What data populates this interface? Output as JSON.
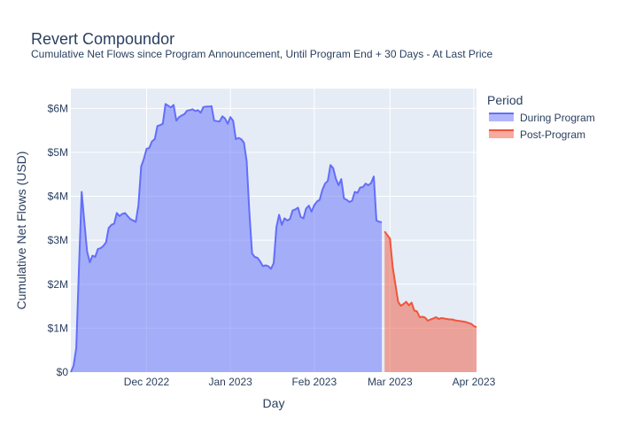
{
  "chart_data": {
    "type": "area",
    "title": "Revert Compoundor",
    "subtitle": "Cumulative Net Flows since Program Announcement, Until Program End + 30 Days - At Last Price",
    "xlabel": "Day",
    "ylabel": "Cumulative Net Flows (USD)",
    "xlim": [
      "2022-11-03",
      "2023-04-02"
    ],
    "ylim": [
      0,
      6450000
    ],
    "grid": true,
    "legend": {
      "title": "Period",
      "placement": "right"
    },
    "x_ticks": [
      {
        "date": "2022-12-01",
        "label": "Dec 2022"
      },
      {
        "date": "2023-01-01",
        "label": "Jan 2023"
      },
      {
        "date": "2023-02-01",
        "label": "Feb 2023"
      },
      {
        "date": "2023-03-01",
        "label": "Mar 2023"
      },
      {
        "date": "2023-04-01",
        "label": "Apr 2023"
      }
    ],
    "y_ticks": [
      {
        "value": 0,
        "label": "$0"
      },
      {
        "value": 1000000,
        "label": "$1M"
      },
      {
        "value": 2000000,
        "label": "$2M"
      },
      {
        "value": 3000000,
        "label": "$3M"
      },
      {
        "value": 4000000,
        "label": "$4M"
      },
      {
        "value": 5000000,
        "label": "$5M"
      },
      {
        "value": 6000000,
        "label": "$6M"
      }
    ],
    "series": [
      {
        "name": "During Program",
        "color": "#636efa",
        "fill": "rgba(99,110,250,0.5)",
        "points": [
          [
            "2022-11-03",
            0
          ],
          [
            "2022-11-04",
            150000
          ],
          [
            "2022-11-05",
            550000
          ],
          [
            "2022-11-06",
            2400000
          ],
          [
            "2022-11-07",
            4100000
          ],
          [
            "2022-11-08",
            3400000
          ],
          [
            "2022-11-09",
            2750000
          ],
          [
            "2022-11-10",
            2500000
          ],
          [
            "2022-11-11",
            2650000
          ],
          [
            "2022-11-12",
            2620000
          ],
          [
            "2022-11-13",
            2800000
          ],
          [
            "2022-11-14",
            2820000
          ],
          [
            "2022-11-15",
            2870000
          ],
          [
            "2022-11-16",
            2950000
          ],
          [
            "2022-11-17",
            3280000
          ],
          [
            "2022-11-18",
            3350000
          ],
          [
            "2022-11-19",
            3380000
          ],
          [
            "2022-11-20",
            3620000
          ],
          [
            "2022-11-21",
            3550000
          ],
          [
            "2022-11-22",
            3600000
          ],
          [
            "2022-11-23",
            3620000
          ],
          [
            "2022-11-24",
            3550000
          ],
          [
            "2022-11-25",
            3480000
          ],
          [
            "2022-11-26",
            3450000
          ],
          [
            "2022-11-27",
            3420000
          ],
          [
            "2022-11-28",
            3800000
          ],
          [
            "2022-11-29",
            4680000
          ],
          [
            "2022-11-30",
            4850000
          ],
          [
            "2022-12-01",
            5080000
          ],
          [
            "2022-12-02",
            5100000
          ],
          [
            "2022-12-03",
            5250000
          ],
          [
            "2022-12-04",
            5300000
          ],
          [
            "2022-12-05",
            5600000
          ],
          [
            "2022-12-06",
            5620000
          ],
          [
            "2022-12-07",
            5650000
          ],
          [
            "2022-12-08",
            6100000
          ],
          [
            "2022-12-09",
            6060000
          ],
          [
            "2022-12-10",
            6020000
          ],
          [
            "2022-12-11",
            6080000
          ],
          [
            "2022-12-12",
            5720000
          ],
          [
            "2022-12-13",
            5800000
          ],
          [
            "2022-12-14",
            5840000
          ],
          [
            "2022-12-15",
            5870000
          ],
          [
            "2022-12-16",
            5950000
          ],
          [
            "2022-12-17",
            5960000
          ],
          [
            "2022-12-18",
            5980000
          ],
          [
            "2022-12-19",
            5940000
          ],
          [
            "2022-12-20",
            5960000
          ],
          [
            "2022-12-21",
            5900000
          ],
          [
            "2022-12-22",
            6030000
          ],
          [
            "2022-12-23",
            6040000
          ],
          [
            "2022-12-24",
            6040000
          ],
          [
            "2022-12-25",
            6050000
          ],
          [
            "2022-12-26",
            5720000
          ],
          [
            "2022-12-27",
            5710000
          ],
          [
            "2022-12-28",
            5700000
          ],
          [
            "2022-12-29",
            5820000
          ],
          [
            "2022-12-30",
            5770000
          ],
          [
            "2022-12-31",
            5650000
          ],
          [
            "2023-01-01",
            5800000
          ],
          [
            "2023-01-02",
            5720000
          ],
          [
            "2023-01-03",
            5300000
          ],
          [
            "2023-01-04",
            5330000
          ],
          [
            "2023-01-05",
            5300000
          ],
          [
            "2023-01-06",
            5220000
          ],
          [
            "2023-01-07",
            4800000
          ],
          [
            "2023-01-08",
            3650000
          ],
          [
            "2023-01-09",
            2700000
          ],
          [
            "2023-01-10",
            2620000
          ],
          [
            "2023-01-11",
            2600000
          ],
          [
            "2023-01-12",
            2520000
          ],
          [
            "2023-01-13",
            2410000
          ],
          [
            "2023-01-14",
            2430000
          ],
          [
            "2023-01-15",
            2410000
          ],
          [
            "2023-01-16",
            2350000
          ],
          [
            "2023-01-17",
            2480000
          ],
          [
            "2023-01-18",
            3300000
          ],
          [
            "2023-01-19",
            3580000
          ],
          [
            "2023-01-20",
            3350000
          ],
          [
            "2023-01-21",
            3500000
          ],
          [
            "2023-01-22",
            3450000
          ],
          [
            "2023-01-23",
            3480000
          ],
          [
            "2023-01-24",
            3680000
          ],
          [
            "2023-01-25",
            3700000
          ],
          [
            "2023-01-26",
            3740000
          ],
          [
            "2023-01-27",
            3530000
          ],
          [
            "2023-01-28",
            3500000
          ],
          [
            "2023-01-29",
            3720000
          ],
          [
            "2023-01-30",
            3790000
          ],
          [
            "2023-01-31",
            3650000
          ],
          [
            "2023-02-01",
            3800000
          ],
          [
            "2023-02-02",
            3880000
          ],
          [
            "2023-02-03",
            3920000
          ],
          [
            "2023-02-04",
            4150000
          ],
          [
            "2023-02-05",
            4290000
          ],
          [
            "2023-02-06",
            4350000
          ],
          [
            "2023-02-07",
            4710000
          ],
          [
            "2023-02-08",
            4640000
          ],
          [
            "2023-02-09",
            4400000
          ],
          [
            "2023-02-10",
            4250000
          ],
          [
            "2023-02-11",
            4390000
          ],
          [
            "2023-02-12",
            3950000
          ],
          [
            "2023-02-13",
            3920000
          ],
          [
            "2023-02-14",
            3870000
          ],
          [
            "2023-02-15",
            3900000
          ],
          [
            "2023-02-16",
            4100000
          ],
          [
            "2023-02-17",
            4080000
          ],
          [
            "2023-02-18",
            4200000
          ],
          [
            "2023-02-19",
            4210000
          ],
          [
            "2023-02-20",
            4290000
          ],
          [
            "2023-02-21",
            4250000
          ],
          [
            "2023-02-22",
            4300000
          ],
          [
            "2023-02-23",
            4450000
          ],
          [
            "2023-02-24",
            3450000
          ],
          [
            "2023-02-25",
            3420000
          ],
          [
            "2023-02-26",
            3410000
          ]
        ]
      },
      {
        "name": "Post-Program",
        "color": "#ef553b",
        "fill": "rgba(239,85,59,0.5)",
        "points": [
          [
            "2023-02-27",
            3200000
          ],
          [
            "2023-02-28",
            3120000
          ],
          [
            "2023-03-01",
            3040000
          ],
          [
            "2023-03-02",
            2400000
          ],
          [
            "2023-03-03",
            2000000
          ],
          [
            "2023-03-04",
            1600000
          ],
          [
            "2023-03-05",
            1510000
          ],
          [
            "2023-03-06",
            1550000
          ],
          [
            "2023-03-07",
            1600000
          ],
          [
            "2023-03-08",
            1520000
          ],
          [
            "2023-03-09",
            1580000
          ],
          [
            "2023-03-10",
            1400000
          ],
          [
            "2023-03-11",
            1380000
          ],
          [
            "2023-03-12",
            1250000
          ],
          [
            "2023-03-13",
            1260000
          ],
          [
            "2023-03-14",
            1240000
          ],
          [
            "2023-03-15",
            1170000
          ],
          [
            "2023-03-16",
            1200000
          ],
          [
            "2023-03-17",
            1220000
          ],
          [
            "2023-03-18",
            1250000
          ],
          [
            "2023-03-19",
            1210000
          ],
          [
            "2023-03-20",
            1230000
          ],
          [
            "2023-03-21",
            1220000
          ],
          [
            "2023-03-22",
            1210000
          ],
          [
            "2023-03-23",
            1200000
          ],
          [
            "2023-03-24",
            1200000
          ],
          [
            "2023-03-25",
            1180000
          ],
          [
            "2023-03-26",
            1170000
          ],
          [
            "2023-03-27",
            1160000
          ],
          [
            "2023-03-28",
            1150000
          ],
          [
            "2023-03-29",
            1140000
          ],
          [
            "2023-03-30",
            1120000
          ],
          [
            "2023-03-31",
            1100000
          ],
          [
            "2023-04-01",
            1050000
          ],
          [
            "2023-04-02",
            1020000
          ]
        ]
      }
    ]
  }
}
